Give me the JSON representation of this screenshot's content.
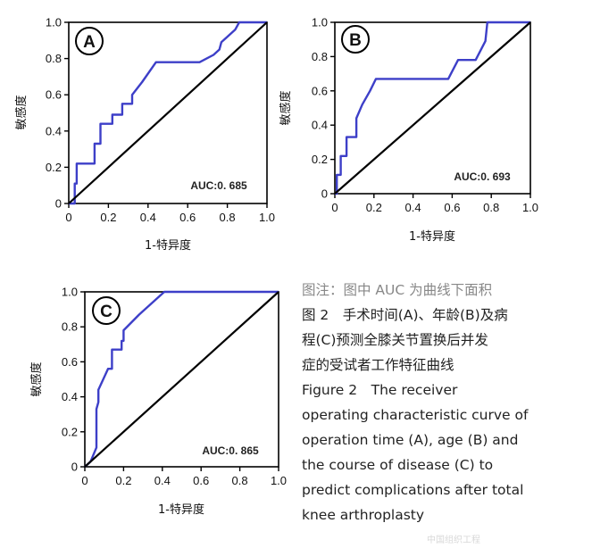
{
  "chart_data": [
    {
      "type": "line",
      "panel": "A",
      "auc_label": "AUC:0. 685",
      "xlabel": "1-特异度",
      "ylabel": "敏感度",
      "xlim": [
        0,
        1
      ],
      "ylim": [
        0,
        1
      ],
      "x_ticks": [
        "0",
        "0.2",
        "0.4",
        "0.6",
        "0.8",
        "1.0"
      ],
      "y_ticks": [
        "0",
        "0.2",
        "0.4",
        "0.6",
        "0.8",
        "1.0"
      ],
      "x_tick_values": [
        0,
        0.2,
        0.4,
        0.6,
        0.8,
        1.0
      ],
      "y_tick_values": [
        0,
        0.2,
        0.4,
        0.6,
        0.8,
        1.0
      ],
      "series": [
        {
          "name": "ROC",
          "color": "#3d3fc8",
          "x": [
            0,
            0.03,
            0.03,
            0.04,
            0.04,
            0.13,
            0.13,
            0.16,
            0.16,
            0.22,
            0.22,
            0.27,
            0.27,
            0.32,
            0.32,
            0.37,
            0.44,
            0.66,
            0.73,
            0.76,
            0.77,
            0.84,
            0.86,
            0.92,
            1.0
          ],
          "y": [
            0,
            0,
            0.11,
            0.11,
            0.22,
            0.22,
            0.33,
            0.33,
            0.44,
            0.44,
            0.49,
            0.49,
            0.55,
            0.55,
            0.6,
            0.67,
            0.78,
            0.78,
            0.82,
            0.85,
            0.89,
            0.96,
            1.0,
            1.0,
            1.0
          ]
        },
        {
          "name": "Reference",
          "color": "#000000",
          "x": [
            0,
            1
          ],
          "y": [
            0,
            1
          ]
        }
      ]
    },
    {
      "type": "line",
      "panel": "B",
      "auc_label": "AUC:0. 693",
      "xlabel": "1-特异度",
      "ylabel": "敏感度",
      "xlim": [
        0,
        1
      ],
      "ylim": [
        0,
        1
      ],
      "x_ticks": [
        "0",
        "0.2",
        "0.4",
        "0.6",
        "0.8",
        "1.0"
      ],
      "y_ticks": [
        "0",
        "0.2",
        "0.4",
        "0.6",
        "0.8",
        "1.0"
      ],
      "x_tick_values": [
        0,
        0.2,
        0.4,
        0.6,
        0.8,
        1.0
      ],
      "y_tick_values": [
        0,
        0.2,
        0.4,
        0.6,
        0.8,
        1.0
      ],
      "series": [
        {
          "name": "ROC",
          "color": "#3d3fc8",
          "x": [
            0,
            0.01,
            0.01,
            0.03,
            0.03,
            0.06,
            0.06,
            0.11,
            0.11,
            0.14,
            0.18,
            0.21,
            0.58,
            0.63,
            0.72,
            0.77,
            0.78,
            0.8,
            1.0
          ],
          "y": [
            0,
            0,
            0.11,
            0.11,
            0.22,
            0.22,
            0.33,
            0.33,
            0.44,
            0.52,
            0.6,
            0.67,
            0.67,
            0.78,
            0.78,
            0.89,
            1.0,
            1.0,
            1.0
          ]
        },
        {
          "name": "Reference",
          "color": "#000000",
          "x": [
            0,
            1
          ],
          "y": [
            0,
            1
          ]
        }
      ]
    },
    {
      "type": "line",
      "panel": "C",
      "auc_label": "AUC:0. 865",
      "xlabel": "1-特异度",
      "ylabel": "敏感度",
      "xlim": [
        0,
        1
      ],
      "ylim": [
        0,
        1
      ],
      "x_ticks": [
        "0",
        "0.2",
        "0.4",
        "0.6",
        "0.8",
        "1.0"
      ],
      "y_ticks": [
        "0",
        "0.2",
        "0.4",
        "0.6",
        "0.8",
        "1.0"
      ],
      "x_tick_values": [
        0,
        0.2,
        0.4,
        0.6,
        0.8,
        1.0
      ],
      "y_tick_values": [
        0,
        0.2,
        0.4,
        0.6,
        0.8,
        1.0
      ],
      "series": [
        {
          "name": "ROC",
          "color": "#3d3fc8",
          "x": [
            0,
            0.03,
            0.06,
            0.06,
            0.07,
            0.07,
            0.12,
            0.14,
            0.14,
            0.19,
            0.19,
            0.2,
            0.2,
            0.28,
            0.41,
            1.0
          ],
          "y": [
            0,
            0.03,
            0.11,
            0.33,
            0.37,
            0.44,
            0.56,
            0.56,
            0.67,
            0.67,
            0.72,
            0.72,
            0.78,
            0.87,
            1.0,
            1.0
          ]
        },
        {
          "name": "Reference",
          "color": "#000000",
          "x": [
            0,
            1
          ],
          "y": [
            0,
            1
          ]
        }
      ]
    }
  ],
  "caption": {
    "note": "图注：图中 AUC 为曲线下面积",
    "title_cn_line1": "图 2　手术时间(A)、年龄(B)及病",
    "title_cn_line2": "程(C)预测全膝关节置换后并发",
    "title_cn_line3": "症的受试者工作特征曲线",
    "title_en_line1": "Figure 2　The receiver",
    "title_en_line2": "operating characteristic curve of",
    "title_en_line3": "operation time (A), age (B) and",
    "title_en_line4": "the course of disease (C) to",
    "title_en_line5": "predict complications after total",
    "title_en_line6": "knee arthroplasty"
  },
  "watermark_text": "中国组织工程"
}
